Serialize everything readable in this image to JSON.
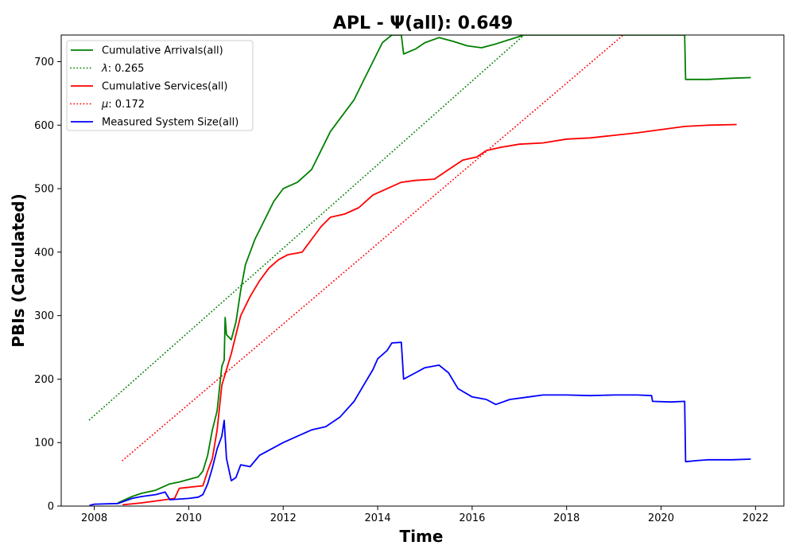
{
  "chart_data": {
    "type": "line",
    "title": "APL -  Ψ(all): 0.649",
    "xlabel": "Time",
    "ylabel": "PBIs (Calculated)",
    "xlim": [
      2007.3,
      2022.6
    ],
    "ylim": [
      0,
      742
    ],
    "x_ticks": [
      2008,
      2010,
      2012,
      2014,
      2016,
      2018,
      2020,
      2022
    ],
    "y_ticks": [
      0,
      100,
      200,
      300,
      400,
      500,
      600,
      700
    ],
    "grid": false,
    "legend_position": "top-left",
    "series": [
      {
        "name": "Cumulative Arrivals(all)",
        "color": "#008000",
        "style": "solid",
        "points": [
          [
            2008.5,
            5
          ],
          [
            2008.8,
            15
          ],
          [
            2009.0,
            20
          ],
          [
            2009.3,
            25
          ],
          [
            2009.6,
            35
          ],
          [
            2009.8,
            38
          ],
          [
            2010.0,
            42
          ],
          [
            2010.2,
            46
          ],
          [
            2010.3,
            55
          ],
          [
            2010.4,
            80
          ],
          [
            2010.5,
            120
          ],
          [
            2010.6,
            150
          ],
          [
            2010.7,
            220
          ],
          [
            2010.75,
            230
          ],
          [
            2010.77,
            297
          ],
          [
            2010.8,
            270
          ],
          [
            2010.9,
            262
          ],
          [
            2011.0,
            290
          ],
          [
            2011.1,
            340
          ],
          [
            2011.2,
            380
          ],
          [
            2011.4,
            420
          ],
          [
            2011.6,
            450
          ],
          [
            2011.8,
            480
          ],
          [
            2012.0,
            500
          ],
          [
            2012.3,
            510
          ],
          [
            2012.6,
            530
          ],
          [
            2012.8,
            560
          ],
          [
            2013.0,
            590
          ],
          [
            2013.3,
            620
          ],
          [
            2013.5,
            640
          ],
          [
            2013.7,
            670
          ],
          [
            2013.9,
            700
          ],
          [
            2014.1,
            730
          ],
          [
            2014.3,
            742
          ],
          [
            2014.5,
            742
          ],
          [
            2014.55,
            712
          ],
          [
            2014.8,
            720
          ],
          [
            2015.0,
            730
          ],
          [
            2015.3,
            738
          ],
          [
            2015.6,
            732
          ],
          [
            2015.9,
            725
          ],
          [
            2016.2,
            722
          ],
          [
            2016.5,
            728
          ],
          [
            2016.8,
            735
          ],
          [
            2017.1,
            742
          ],
          [
            2020.5,
            742
          ],
          [
            2020.52,
            672
          ],
          [
            2021.0,
            672
          ],
          [
            2021.5,
            674
          ],
          [
            2021.9,
            675
          ]
        ]
      },
      {
        "name": "λ: 0.265",
        "name_symbol": "λ",
        "name_value": ": 0.265",
        "color": "#008000",
        "style": "dotted",
        "points": [
          [
            2007.9,
            136
          ],
          [
            2017.1,
            742
          ]
        ]
      },
      {
        "name": "Cumulative Services(all)",
        "color": "#ff0000",
        "style": "solid",
        "points": [
          [
            2008.6,
            2
          ],
          [
            2009.0,
            5
          ],
          [
            2009.3,
            8
          ],
          [
            2009.7,
            12
          ],
          [
            2009.8,
            28
          ],
          [
            2010.3,
            32
          ],
          [
            2010.4,
            55
          ],
          [
            2010.5,
            75
          ],
          [
            2010.6,
            120
          ],
          [
            2010.7,
            190
          ],
          [
            2010.8,
            215
          ],
          [
            2010.9,
            240
          ],
          [
            2011.0,
            270
          ],
          [
            2011.1,
            300
          ],
          [
            2011.3,
            330
          ],
          [
            2011.5,
            355
          ],
          [
            2011.7,
            375
          ],
          [
            2011.9,
            388
          ],
          [
            2012.1,
            396
          ],
          [
            2012.4,
            400
          ],
          [
            2012.6,
            420
          ],
          [
            2012.8,
            440
          ],
          [
            2013.0,
            455
          ],
          [
            2013.3,
            460
          ],
          [
            2013.6,
            470
          ],
          [
            2013.9,
            490
          ],
          [
            2014.2,
            500
          ],
          [
            2014.5,
            510
          ],
          [
            2014.8,
            513
          ],
          [
            2015.2,
            515
          ],
          [
            2015.5,
            530
          ],
          [
            2015.8,
            545
          ],
          [
            2016.1,
            550
          ],
          [
            2016.3,
            560
          ],
          [
            2016.6,
            565
          ],
          [
            2017.0,
            570
          ],
          [
            2017.5,
            572
          ],
          [
            2018.0,
            578
          ],
          [
            2018.5,
            580
          ],
          [
            2019.0,
            584
          ],
          [
            2019.5,
            588
          ],
          [
            2020.0,
            593
          ],
          [
            2020.5,
            598
          ],
          [
            2021.0,
            600
          ],
          [
            2021.6,
            601
          ]
        ]
      },
      {
        "name": "μ: 0.172",
        "name_symbol": "μ",
        "name_value": ": 0.172",
        "color": "#ff0000",
        "style": "dotted",
        "points": [
          [
            2008.6,
            72
          ],
          [
            2019.2,
            742
          ]
        ]
      },
      {
        "name": "Measured System Size(all)",
        "color": "#0000ff",
        "style": "solid",
        "points": [
          [
            2007.9,
            1
          ],
          [
            2008.0,
            3
          ],
          [
            2008.5,
            4
          ],
          [
            2008.8,
            12
          ],
          [
            2009.0,
            15
          ],
          [
            2009.3,
            18
          ],
          [
            2009.5,
            22
          ],
          [
            2009.6,
            10
          ],
          [
            2010.0,
            12
          ],
          [
            2010.2,
            14
          ],
          [
            2010.3,
            18
          ],
          [
            2010.4,
            35
          ],
          [
            2010.5,
            60
          ],
          [
            2010.6,
            90
          ],
          [
            2010.7,
            110
          ],
          [
            2010.75,
            135
          ],
          [
            2010.8,
            75
          ],
          [
            2010.9,
            40
          ],
          [
            2011.0,
            45
          ],
          [
            2011.1,
            65
          ],
          [
            2011.3,
            62
          ],
          [
            2011.5,
            80
          ],
          [
            2011.7,
            88
          ],
          [
            2012.0,
            100
          ],
          [
            2012.3,
            110
          ],
          [
            2012.6,
            120
          ],
          [
            2012.9,
            125
          ],
          [
            2013.2,
            140
          ],
          [
            2013.5,
            165
          ],
          [
            2013.7,
            190
          ],
          [
            2013.9,
            215
          ],
          [
            2014.0,
            232
          ],
          [
            2014.2,
            245
          ],
          [
            2014.3,
            257
          ],
          [
            2014.5,
            258
          ],
          [
            2014.55,
            200
          ],
          [
            2014.8,
            210
          ],
          [
            2015.0,
            218
          ],
          [
            2015.3,
            222
          ],
          [
            2015.5,
            210
          ],
          [
            2015.7,
            185
          ],
          [
            2016.0,
            172
          ],
          [
            2016.3,
            168
          ],
          [
            2016.5,
            160
          ],
          [
            2016.8,
            168
          ],
          [
            2017.2,
            172
          ],
          [
            2017.5,
            175
          ],
          [
            2018.0,
            175
          ],
          [
            2018.5,
            174
          ],
          [
            2019.0,
            175
          ],
          [
            2019.5,
            175
          ],
          [
            2019.8,
            174
          ],
          [
            2019.82,
            165
          ],
          [
            2020.2,
            164
          ],
          [
            2020.5,
            165
          ],
          [
            2020.52,
            70
          ],
          [
            2020.8,
            72
          ],
          [
            2021.0,
            73
          ],
          [
            2021.5,
            73
          ],
          [
            2021.9,
            74
          ]
        ]
      }
    ]
  }
}
